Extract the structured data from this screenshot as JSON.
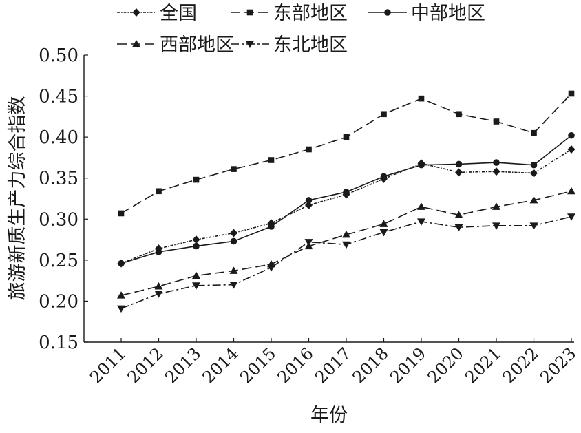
{
  "chart_data": {
    "type": "line",
    "title": "",
    "xlabel": "年份",
    "ylabel": "旅游新质生产力综合指数",
    "x": [
      "2011",
      "2012",
      "2013",
      "2014",
      "2015",
      "2016",
      "2017",
      "2018",
      "2019",
      "2020",
      "2021",
      "2022",
      "2023"
    ],
    "ylim": [
      0.15,
      0.5
    ],
    "yticks": [
      "0.15",
      "0.20",
      "0.25",
      "0.30",
      "0.35",
      "0.40",
      "0.45",
      "0.50"
    ],
    "grid": false,
    "legend_position": "top",
    "series": [
      {
        "name": "全国",
        "marker": "diamond",
        "dash": "dashdot-fine",
        "values": [
          0.246,
          0.264,
          0.275,
          0.283,
          0.295,
          0.317,
          0.33,
          0.349,
          0.368,
          0.357,
          0.358,
          0.356,
          0.385
        ]
      },
      {
        "name": "东部地区",
        "marker": "square",
        "dash": "long-dash",
        "values": [
          0.307,
          0.334,
          0.348,
          0.361,
          0.372,
          0.385,
          0.4,
          0.428,
          0.447,
          0.428,
          0.419,
          0.405,
          0.453
        ]
      },
      {
        "name": "中部地区",
        "marker": "circle",
        "dash": "solid",
        "values": [
          0.246,
          0.26,
          0.267,
          0.273,
          0.291,
          0.323,
          0.333,
          0.352,
          0.366,
          0.367,
          0.369,
          0.366,
          0.402
        ]
      },
      {
        "name": "西部地区",
        "marker": "triangle-up",
        "dash": "long-dash",
        "values": [
          0.207,
          0.218,
          0.231,
          0.237,
          0.245,
          0.267,
          0.281,
          0.294,
          0.315,
          0.305,
          0.315,
          0.323,
          0.334
        ]
      },
      {
        "name": "东北地区",
        "marker": "triangle-down",
        "dash": "dashdot",
        "values": [
          0.191,
          0.209,
          0.219,
          0.22,
          0.241,
          0.272,
          0.269,
          0.284,
          0.297,
          0.29,
          0.292,
          0.292,
          0.303
        ]
      }
    ]
  }
}
